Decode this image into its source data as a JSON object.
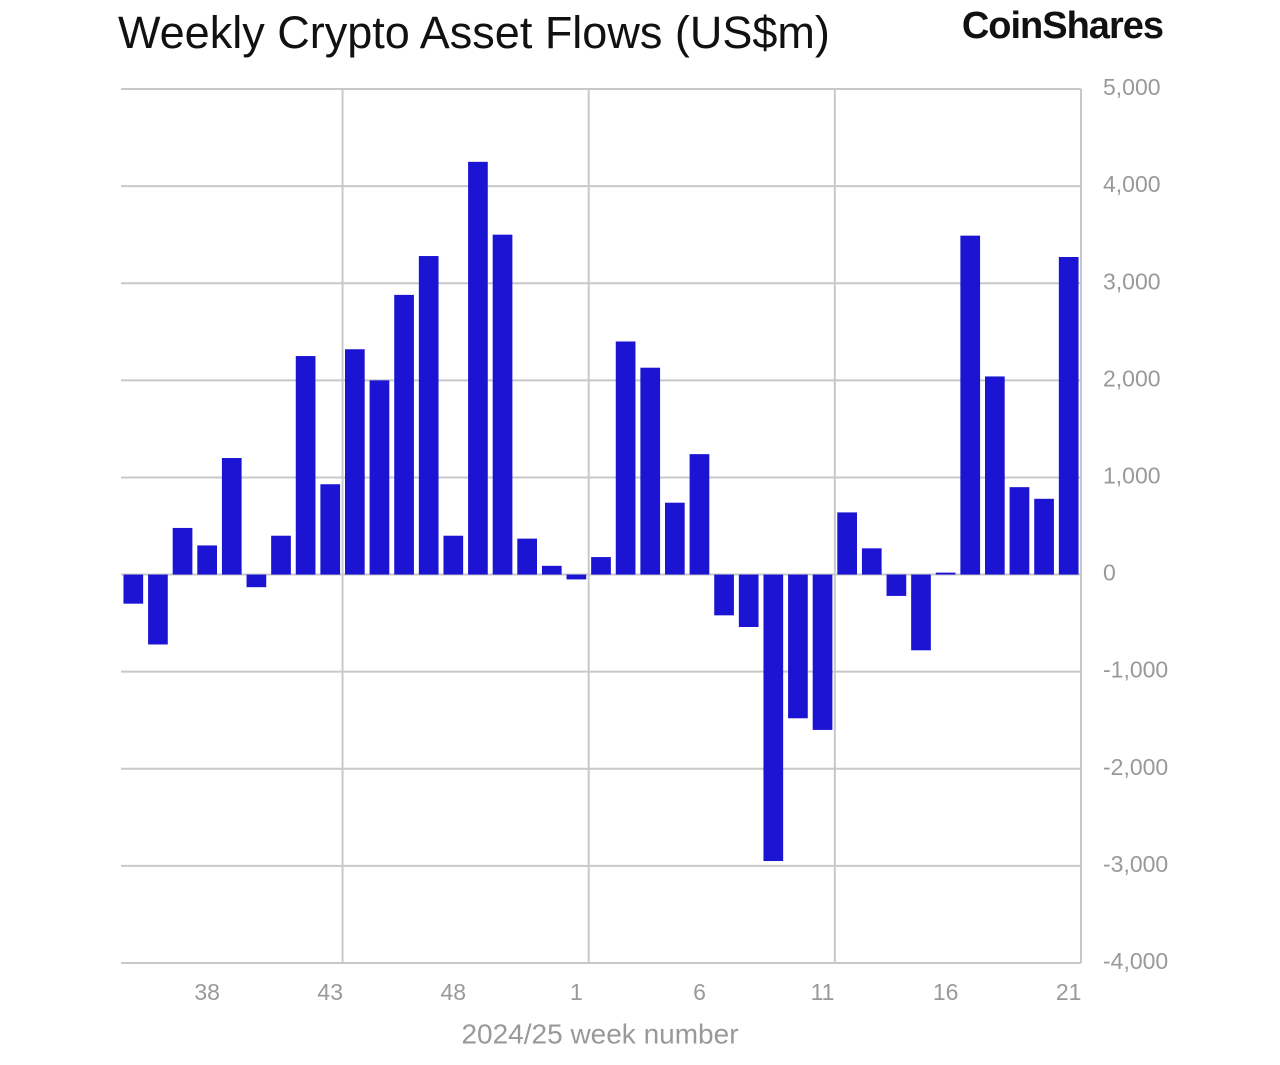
{
  "chart_data": {
    "type": "bar",
    "title": "Weekly Crypto Asset Flows (US$m)",
    "brand": "CoinShares",
    "x_label": "2024/25 week number",
    "categories": [
      null,
      null,
      null,
      "38",
      null,
      null,
      null,
      null,
      "43",
      null,
      null,
      null,
      null,
      "48",
      null,
      null,
      null,
      null,
      "1",
      null,
      null,
      null,
      null,
      "6",
      null,
      null,
      null,
      null,
      "11",
      null,
      null,
      null,
      null,
      "16",
      null,
      null,
      null,
      null,
      "21"
    ],
    "values": [
      -300,
      -720,
      480,
      300,
      1200,
      -130,
      400,
      2250,
      930,
      2320,
      2000,
      2880,
      3280,
      400,
      4250,
      3500,
      370,
      90,
      -50,
      180,
      2400,
      2130,
      740,
      1240,
      -420,
      -540,
      -2950,
      -1480,
      -1600,
      640,
      270,
      -220,
      -780,
      20,
      3490,
      2040,
      900,
      780,
      3270
    ],
    "color": "#1b15d3",
    "ylim": [
      -4000,
      5000
    ],
    "yticks": [
      {
        "value": -4000,
        "label": "-4,000"
      },
      {
        "value": -3000,
        "label": "-3,000"
      },
      {
        "value": -2000,
        "label": "-2,000"
      },
      {
        "value": -1000,
        "label": "-1,000"
      },
      0,
      {
        "value": 1000,
        "label": "1,000"
      },
      {
        "value": 2000,
        "label": "2,000"
      },
      {
        "value": 3000,
        "label": "3,000"
      },
      {
        "value": 4000,
        "label": "4,000"
      },
      {
        "value": 5000,
        "label": "5,000"
      }
    ],
    "grid": true
  }
}
